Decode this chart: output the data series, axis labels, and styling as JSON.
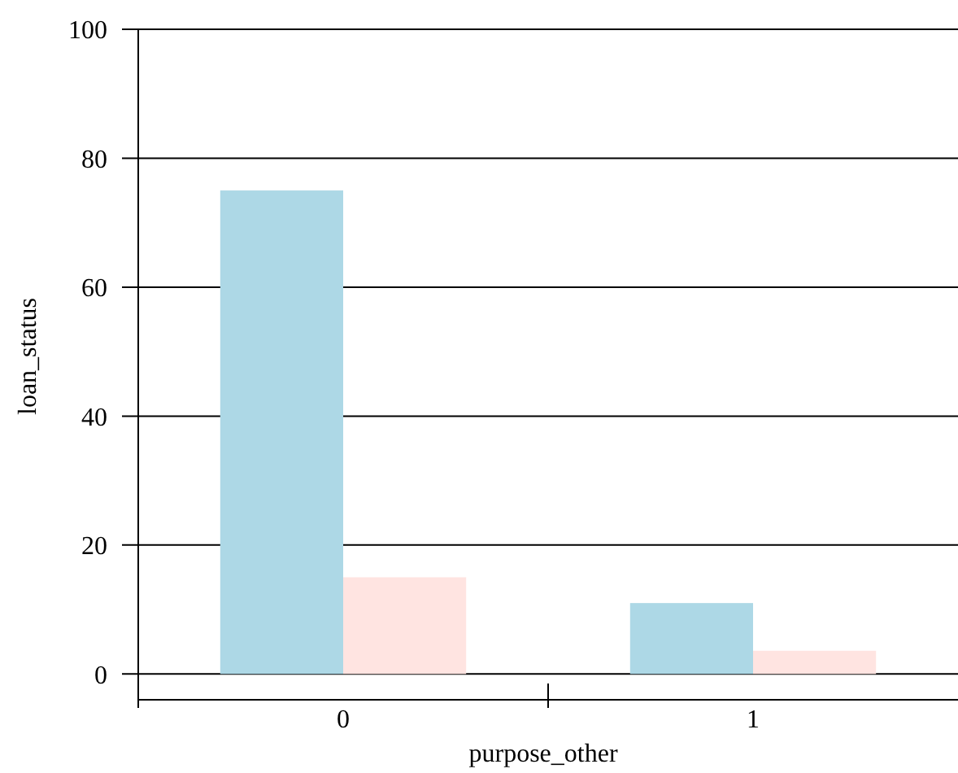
{
  "chart_data": {
    "type": "bar",
    "xlabel": "purpose_other",
    "ylabel": "loan_status",
    "categories": [
      "0",
      "1"
    ],
    "series": [
      {
        "color": "#add8e6",
        "values": [
          75,
          11
        ]
      },
      {
        "color": "#ffe4e1",
        "values": [
          15,
          3.6
        ]
      }
    ],
    "ylim": [
      -4,
      100
    ],
    "yticks": [
      0,
      20,
      40,
      60,
      80,
      100
    ],
    "grid": "y"
  }
}
